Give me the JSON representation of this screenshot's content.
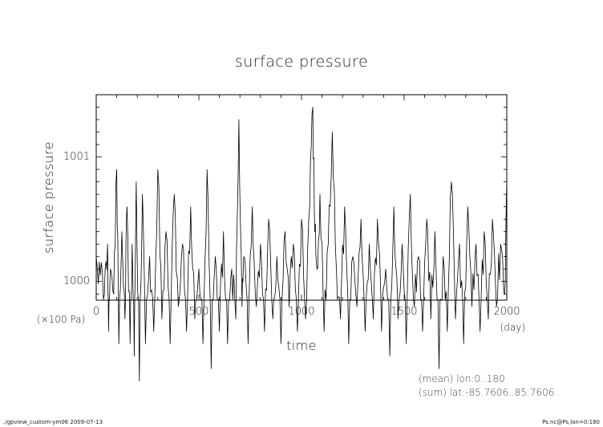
{
  "chart_data": {
    "type": "line",
    "title": "surface pressure",
    "xlabel": "time",
    "ylabel": "surface pressure",
    "xunit": "(day)",
    "yunit": "(×100 Pa)",
    "xlim": [
      0,
      2000
    ],
    "ylim": [
      999.85,
      1001.5
    ],
    "xticks": [
      0,
      500,
      1000,
      1500,
      2000
    ],
    "xtick_labels": [
      "0",
      "500",
      "1000",
      "1500",
      "2000"
    ],
    "yticks": [
      1000,
      1001
    ],
    "ytick_labels": [
      "1000",
      "1001"
    ],
    "grid": false,
    "series": [
      {
        "name": "",
        "x": [
          0,
          20,
          40,
          55,
          60,
          70,
          85,
          100,
          110,
          125,
          140,
          150,
          165,
          175,
          185,
          195,
          210,
          225,
          240,
          260,
          280,
          300,
          320,
          340,
          360,
          380,
          400,
          420,
          440,
          460,
          480,
          500,
          520,
          540,
          560,
          580,
          600,
          620,
          640,
          660,
          680,
          695,
          710,
          720,
          740,
          760,
          780,
          800,
          820,
          840,
          860,
          880,
          900,
          920,
          940,
          960,
          980,
          1000,
          1020,
          1040,
          1055,
          1065,
          1075,
          1090,
          1110,
          1130,
          1150,
          1170,
          1190,
          1210,
          1230,
          1250,
          1270,
          1290,
          1310,
          1330,
          1350,
          1370,
          1390,
          1410,
          1430,
          1450,
          1470,
          1490,
          1510,
          1530,
          1550,
          1570,
          1590,
          1610,
          1630,
          1650,
          1670,
          1690,
          1710,
          1730,
          1750,
          1770,
          1790,
          1810,
          1830,
          1850,
          1870,
          1890,
          1910,
          1930,
          1950,
          1970,
          1990,
          2000
        ],
        "y": [
          1000.2,
          1000.05,
          999.9,
          1000.3,
          999.6,
          1000.1,
          999.9,
          1000.9,
          999.5,
          1000.4,
          999.7,
          1000.6,
          999.5,
          1000.3,
          999.4,
          1000.8,
          999.2,
          1000.7,
          999.5,
          1000.2,
          999.6,
          1000.9,
          999.7,
          1000.4,
          999.5,
          1000.7,
          999.8,
          1000.3,
          999.6,
          1000.6,
          999.7,
          1000.1,
          999.5,
          1000.9,
          999.3,
          1000.2,
          999.6,
          1000.4,
          999.5,
          1000.1,
          999.7,
          1001.3,
          999.8,
          1000.2,
          999.5,
          1000.6,
          999.8,
          1000.3,
          999.6,
          1000.5,
          999.7,
          1000.2,
          999.5,
          1000.4,
          999.8,
          1000.3,
          999.6,
          1000.5,
          999.7,
          1000.6,
          1001.4,
          1000.4,
          1000.1,
          1000.7,
          999.6,
          1000.3,
          1001.2,
          1000.1,
          999.7,
          1000.6,
          999.5,
          1000.2,
          999.8,
          1000.5,
          999.6,
          1000.3,
          999.7,
          1000.5,
          999.6,
          1000.1,
          999.4,
          1000.6,
          999.7,
          1000.3,
          999.5,
          1000.7,
          999.8,
          1000.2,
          999.6,
          1000.5,
          999.7,
          1000.4,
          999.3,
          1000.2,
          999.6,
          1000.8,
          999.7,
          1000.3,
          999.5,
          1000.6,
          999.8,
          1000.3,
          999.6,
          1000.4,
          999.7,
          1000.5,
          999.8,
          1000.3,
          999.9,
          1000.8
        ]
      }
    ],
    "notes": [
      "(mean) lon:0..180",
      "(sum) lat:-85.7606..85.7606"
    ]
  },
  "footer": {
    "left": "./gpview_custom-ym06  2009-07-13",
    "right": "Ps.nc@Ps,lon=0:180"
  }
}
